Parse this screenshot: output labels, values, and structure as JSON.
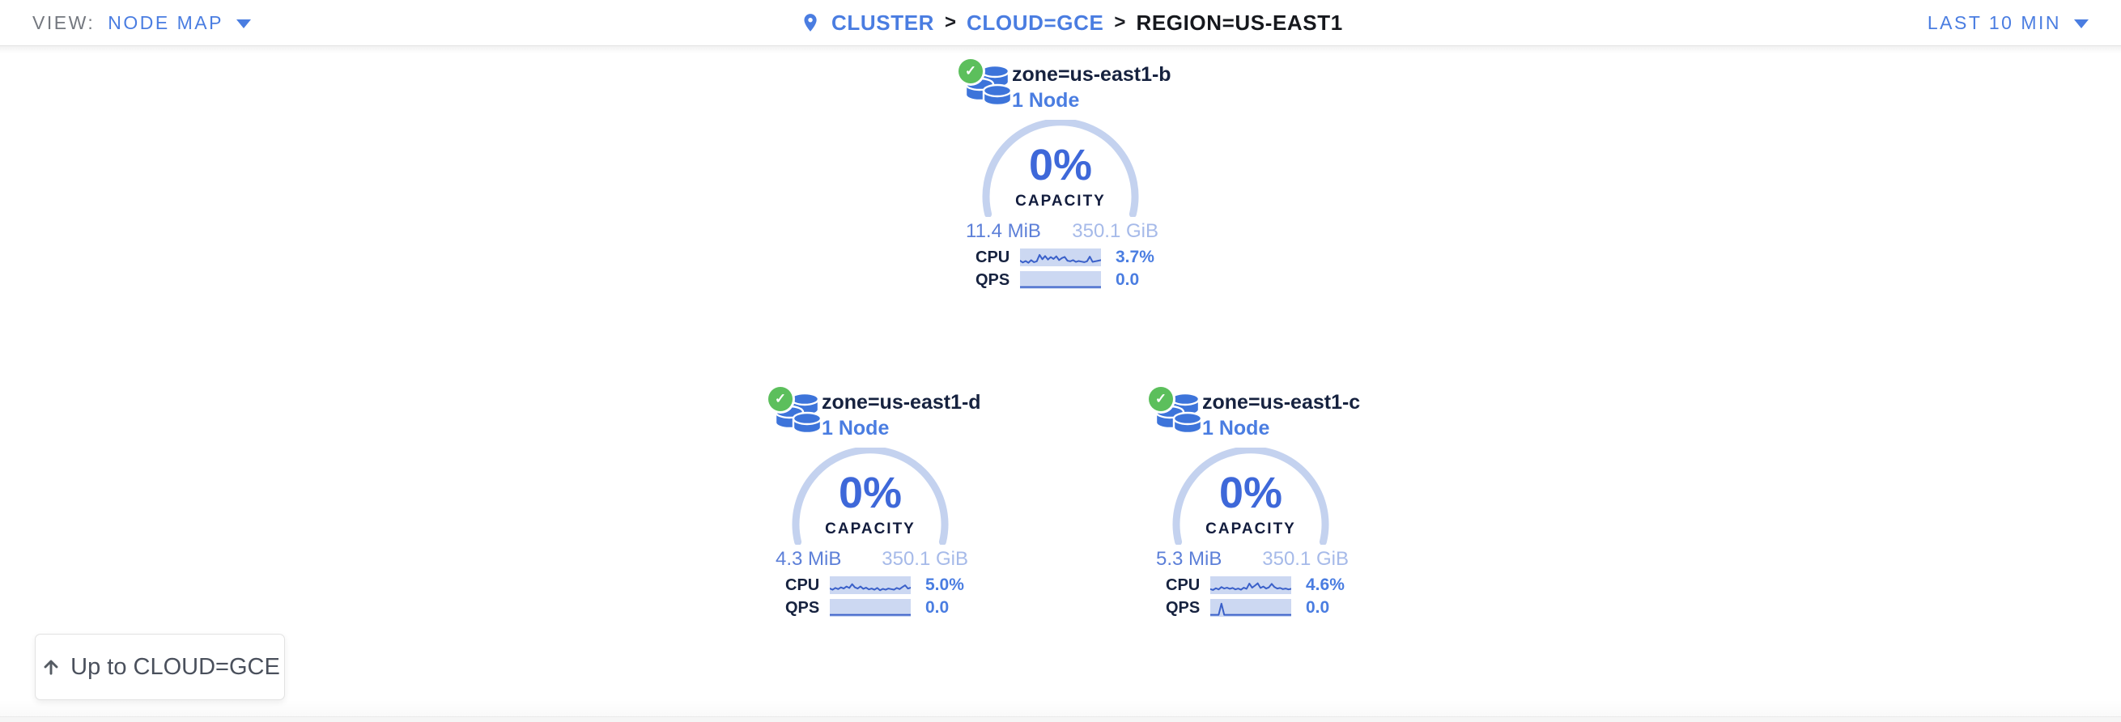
{
  "header": {
    "view_label": "VIEW:",
    "view_value": "NODE MAP",
    "separator": ">",
    "breadcrumb": [
      {
        "label": "CLUSTER"
      },
      {
        "label": "CLOUD=GCE"
      },
      {
        "label": "REGION=US-EAST1"
      }
    ],
    "time_range": "LAST 10 MIN"
  },
  "zones": [
    {
      "name": "zone=us-east1-b",
      "node_count": "1 Node",
      "capacity_pct": "0%",
      "capacity_label": "CAPACITY",
      "capacity_used": "11.4 MiB",
      "capacity_total": "350.1 GiB",
      "cpu_label": "CPU",
      "cpu_value": "3.7%",
      "qps_label": "QPS",
      "qps_value": "0.0",
      "cpu_spark": [
        0.3,
        0.18,
        0.28,
        0.16,
        0.34,
        0.2,
        0.26,
        0.7,
        0.4,
        0.62,
        0.38,
        0.55,
        0.42,
        0.6,
        0.34,
        0.48,
        0.56,
        0.3,
        0.26,
        0.34,
        0.22,
        0.28,
        0.24,
        0.2,
        0.26,
        0.58,
        0.22,
        0.26,
        0.3,
        0.34
      ],
      "qps_spark": [
        0.05,
        0.05
      ]
    },
    {
      "name": "zone=us-east1-d",
      "node_count": "1 Node",
      "capacity_pct": "0%",
      "capacity_label": "CAPACITY",
      "capacity_used": "4.3 MiB",
      "capacity_total": "350.1 GiB",
      "cpu_label": "CPU",
      "cpu_value": "5.0%",
      "qps_label": "QPS",
      "qps_value": "0.0",
      "cpu_spark": [
        0.3,
        0.22,
        0.34,
        0.26,
        0.38,
        0.3,
        0.44,
        0.34,
        0.6,
        0.38,
        0.3,
        0.44,
        0.28,
        0.36,
        0.24,
        0.3,
        0.22,
        0.34,
        0.18,
        0.28,
        0.22,
        0.3,
        0.26,
        0.22,
        0.34,
        0.26,
        0.4,
        0.52,
        0.3,
        0.36
      ],
      "qps_spark": [
        0.05,
        0.05
      ]
    },
    {
      "name": "zone=us-east1-c",
      "node_count": "1 Node",
      "capacity_pct": "0%",
      "capacity_label": "CAPACITY",
      "capacity_used": "5.3 MiB",
      "capacity_total": "350.1 GiB",
      "cpu_label": "CPU",
      "cpu_value": "4.6%",
      "qps_label": "QPS",
      "qps_value": "0.0",
      "cpu_spark": [
        0.26,
        0.2,
        0.32,
        0.24,
        0.4,
        0.3,
        0.36,
        0.28,
        0.34,
        0.24,
        0.3,
        0.22,
        0.36,
        0.28,
        0.64,
        0.36,
        0.5,
        0.66,
        0.34,
        0.44,
        0.3,
        0.38,
        0.62,
        0.4,
        0.3,
        0.34,
        0.26,
        0.3,
        0.24,
        0.28
      ],
      "qps_spark": [
        0.05,
        0.05,
        0.05,
        0.05,
        0.82,
        0.05,
        0.05,
        0.05,
        0.05,
        0.05,
        0.05,
        0.05,
        0.05,
        0.05,
        0.05,
        0.05,
        0.05,
        0.05,
        0.05,
        0.05,
        0.05,
        0.05,
        0.05,
        0.05,
        0.05,
        0.05,
        0.05,
        0.05,
        0.05,
        0.05
      ]
    }
  ],
  "up_button": {
    "label": "Up to CLOUD=GCE"
  },
  "icons": {
    "status": "check",
    "node_group": "database-stack",
    "breadcrumb_pin": "map-pin",
    "view_caret": "chevron-down",
    "time_caret": "chevron-down",
    "up_arrow": "arrow-up"
  },
  "colors": {
    "accent_blue": "#4a7de1",
    "gauge_pct_blue": "#3e68d9",
    "capacity_used_blue": "#5c7fd8",
    "capacity_total_blue": "#a6bae9",
    "arc": "#c4d2ef",
    "spark_bg": "#ccd8f2",
    "spark_line": "#3a60c9",
    "status_green": "#5cbf5c",
    "dark_navy": "#16223f",
    "db_icon_blue": "#3d74da"
  }
}
